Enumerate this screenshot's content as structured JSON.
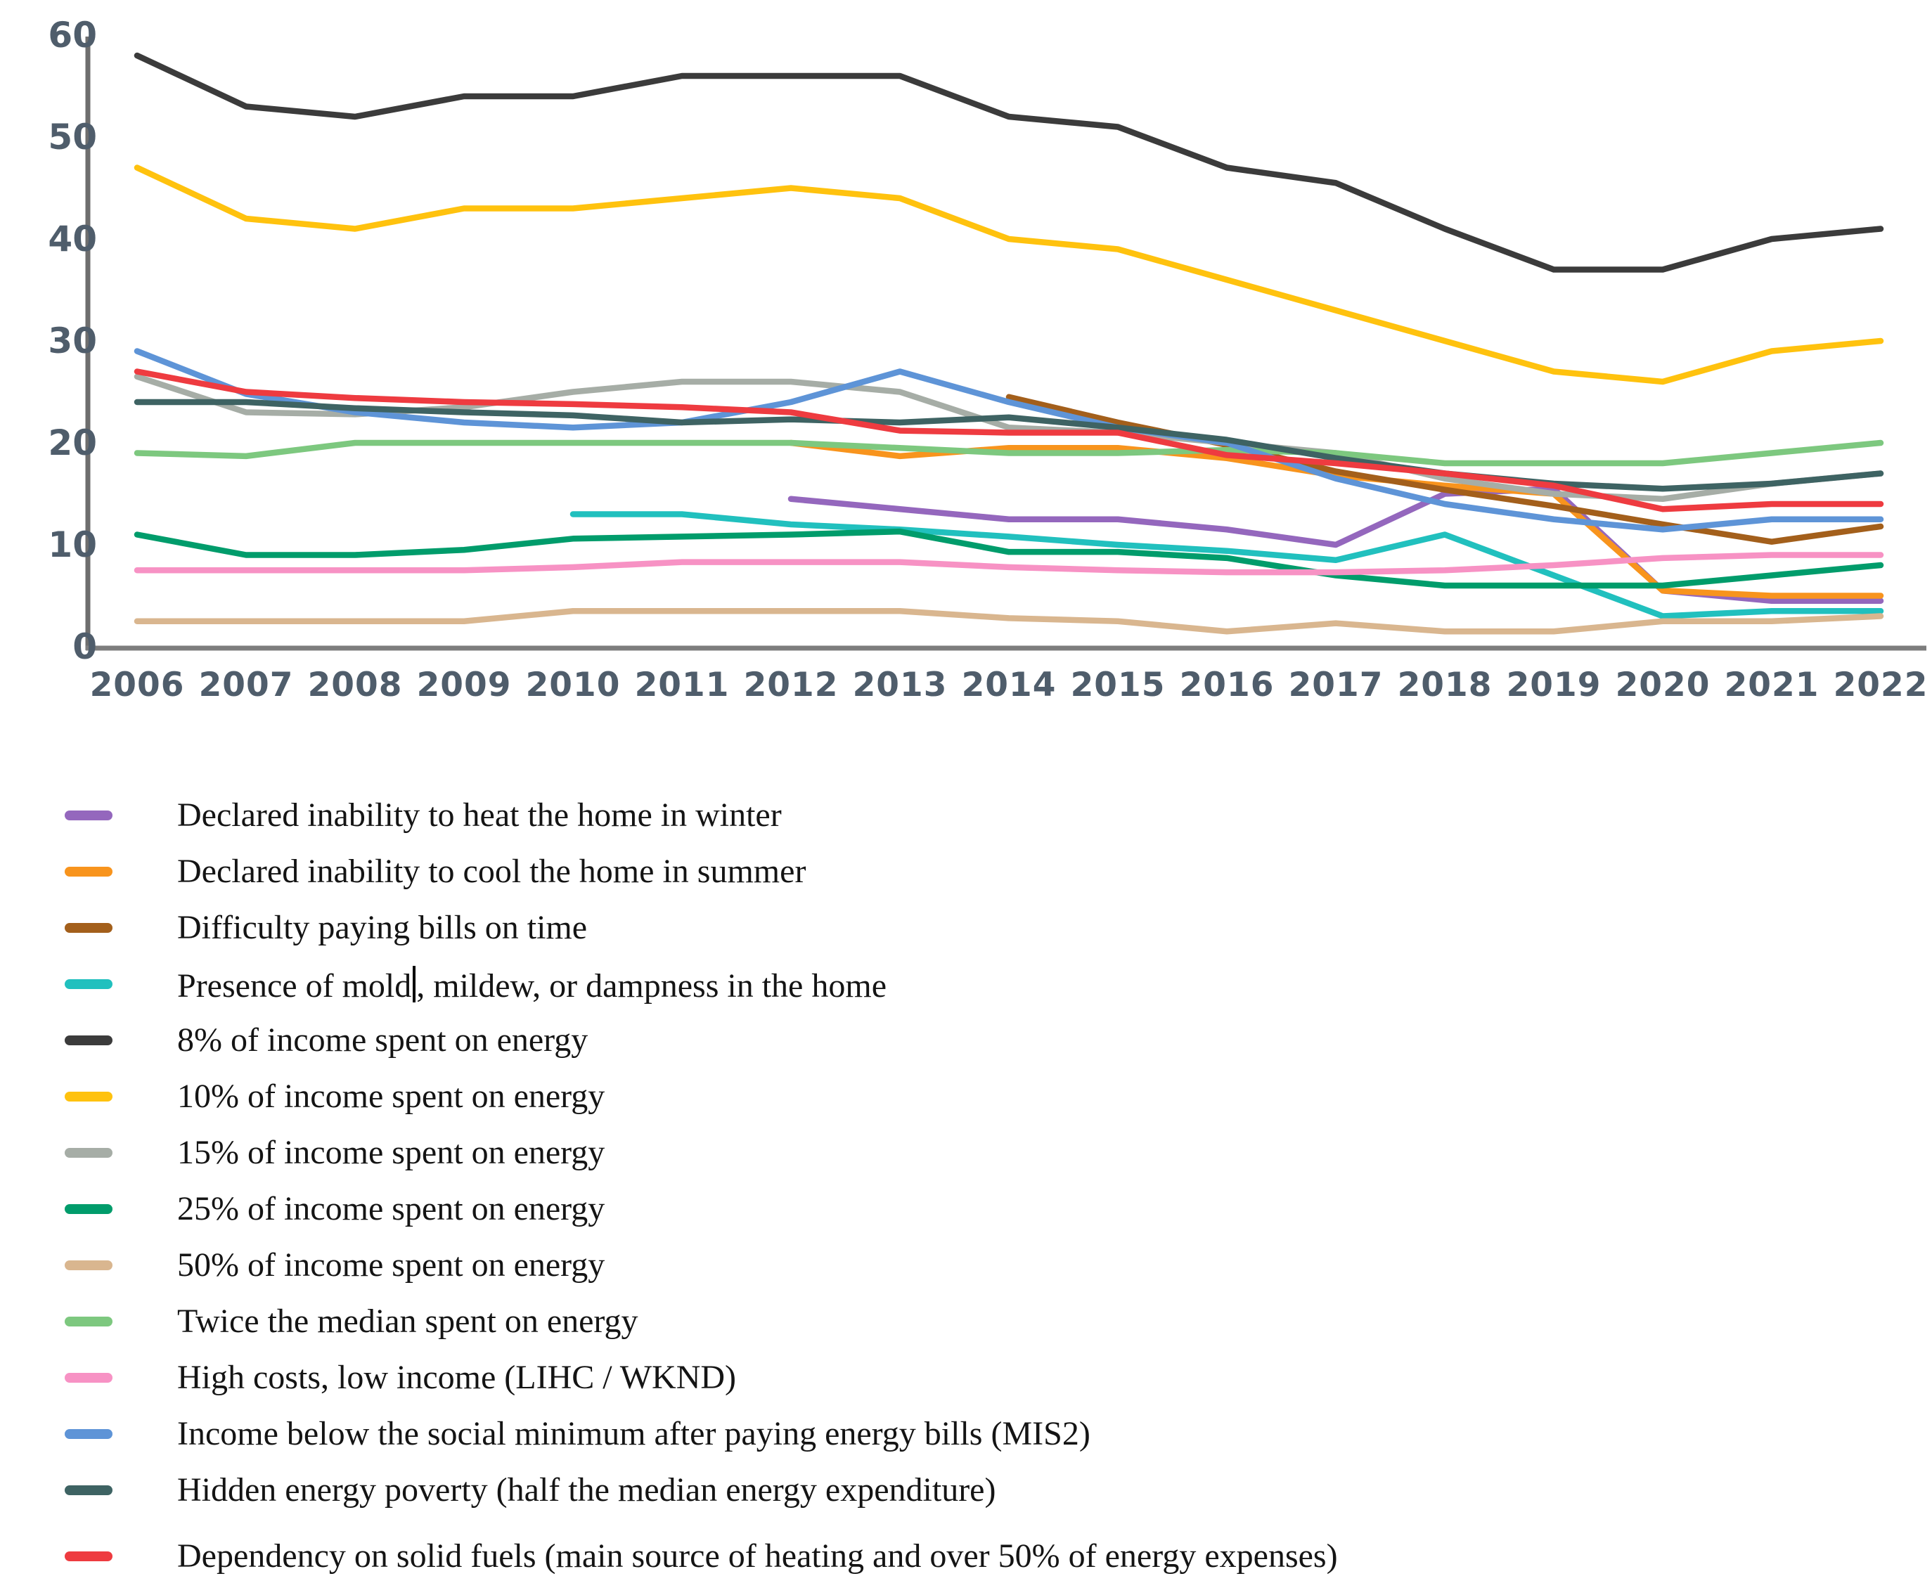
{
  "chart_data": {
    "type": "line",
    "title": "",
    "xlabel": "",
    "ylabel": "",
    "x": [
      2006,
      2007,
      2008,
      2009,
      2010,
      2011,
      2012,
      2013,
      2014,
      2015,
      2016,
      2017,
      2018,
      2019,
      2020,
      2021,
      2022
    ],
    "ylim": [
      0,
      60
    ],
    "yticks": [
      0,
      10,
      20,
      30,
      40,
      50,
      60
    ],
    "grid": false,
    "legend_position": "below-left",
    "axis_color": "#6e6e6e",
    "tick_label_color": "#4f5d6b",
    "series": [
      {
        "id": "heat-winter",
        "label": "Declared inability to heat the home in winter",
        "color": "#9467bd",
        "values": [
          null,
          null,
          null,
          null,
          null,
          null,
          14.5,
          13.5,
          12.5,
          12.5,
          11.5,
          10,
          15,
          15.5,
          5.5,
          4.5,
          4.5
        ]
      },
      {
        "id": "cool-summer",
        "label": "Declared inability to cool the home in summer",
        "color": "#F8941D",
        "values": [
          null,
          null,
          null,
          null,
          null,
          null,
          20,
          18.7,
          19.5,
          19.5,
          18.5,
          16.8,
          15.8,
          15,
          5.5,
          5,
          5
        ]
      },
      {
        "id": "pay-bills",
        "label": "Difficulty paying bills on time",
        "color": "#A35F1B",
        "values": [
          null,
          null,
          null,
          null,
          null,
          null,
          null,
          null,
          24.5,
          22,
          19.8,
          17.2,
          15.4,
          13.8,
          12,
          10.3,
          11.8
        ]
      },
      {
        "id": "mold",
        "label": "Presence of mold, mildew, or dampness in the home",
        "color": "#21C0BE",
        "caret_after": "Presence of mold",
        "values": [
          null,
          null,
          null,
          null,
          13,
          13,
          12,
          11.5,
          10.8,
          10,
          9.4,
          8.5,
          11,
          7,
          3,
          3.5,
          3.5
        ]
      },
      {
        "id": "income-8",
        "label": "8% of income spent on energy",
        "color": "#3B3B3B",
        "values": [
          58,
          53,
          52,
          54,
          54,
          56,
          56,
          56,
          52,
          51,
          47,
          45.5,
          41,
          37,
          37,
          40,
          41
        ]
      },
      {
        "id": "income-10",
        "label": "10% of income spent on energy",
        "color": "#FFC20E",
        "values": [
          47,
          42,
          41,
          43,
          43,
          44,
          45,
          44,
          40,
          39,
          36,
          33,
          30,
          27,
          26,
          29,
          30
        ]
      },
      {
        "id": "income-15",
        "label": "15% of income spent on energy",
        "color": "#A6ADA6",
        "values": [
          26.5,
          23,
          22.8,
          23.5,
          25,
          26,
          26,
          25,
          21.5,
          21,
          20,
          19,
          16.5,
          15,
          14.5,
          16,
          17
        ]
      },
      {
        "id": "income-25",
        "label": "25% of income spent on energy",
        "color": "#009C6B",
        "values": [
          11,
          9,
          9,
          9.5,
          10.6,
          10.8,
          11,
          11.3,
          9.3,
          9.3,
          8.7,
          7,
          6,
          6,
          6,
          7,
          8
        ]
      },
      {
        "id": "income-50",
        "label": "50% of income spent on energy",
        "color": "#D9B68F",
        "values": [
          2.5,
          2.5,
          2.5,
          2.5,
          3.5,
          3.5,
          3.5,
          3.5,
          2.8,
          2.5,
          1.5,
          2.3,
          1.5,
          1.5,
          2.5,
          2.5,
          3
        ]
      },
      {
        "id": "twice-median",
        "label": "Twice the median spent on energy",
        "color": "#7DC87F",
        "values": [
          19,
          18.7,
          20,
          20,
          20,
          20,
          20,
          19.5,
          19,
          19,
          19.3,
          19,
          18,
          18,
          18,
          19,
          20
        ]
      },
      {
        "id": "lihc",
        "label": "High costs, low income (LIHC / WKND)",
        "color": "#F792C4",
        "values": [
          7.5,
          7.5,
          7.5,
          7.5,
          7.8,
          8.3,
          8.3,
          8.3,
          7.8,
          7.5,
          7.3,
          7.3,
          7.5,
          8,
          8.7,
          9,
          9
        ]
      },
      {
        "id": "mis2",
        "label": "Income below the social minimum after paying energy bills (MIS2)",
        "color": "#5E94D7",
        "values": [
          29,
          24.8,
          23,
          22,
          21.5,
          22,
          24,
          27,
          24,
          21.5,
          20,
          16.5,
          14,
          12.5,
          11.5,
          12.5,
          12.5
        ]
      },
      {
        "id": "hidden-poverty",
        "label": "Hidden energy poverty (half the median energy expenditure)",
        "color": "#3E6363",
        "values": [
          24,
          24,
          23.4,
          23,
          22.7,
          22,
          22.3,
          22,
          22.5,
          21.5,
          20.3,
          18.5,
          17,
          16,
          15.5,
          16,
          17
        ]
      },
      {
        "id": "solid-fuels",
        "label": "Dependency on solid fuels (main source of heating and over 50% of energy expenses)",
        "color": "#EE3B40",
        "values": [
          27,
          25,
          24.4,
          24,
          23.8,
          23.5,
          23,
          21.2,
          21,
          21,
          18.8,
          18,
          17,
          15.8,
          13.5,
          14,
          14
        ]
      }
    ]
  }
}
